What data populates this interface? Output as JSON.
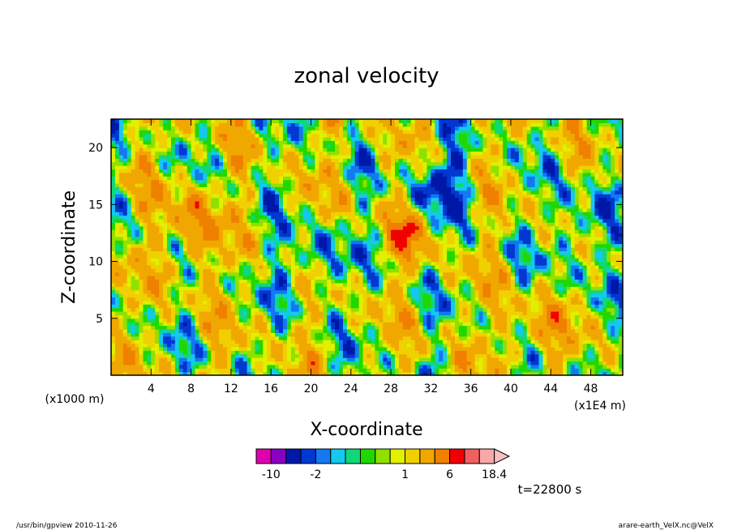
{
  "chart_data": {
    "type": "heatmap",
    "title": "zonal velocity",
    "xlabel": "X-coordinate",
    "ylabel": "Z-coordinate",
    "x_unit_label": "(x1E4 m)",
    "y_unit_label": "(x1000 m)",
    "xlim": [
      0,
      51.2
    ],
    "ylim": [
      0,
      22.5
    ],
    "x_ticks": [
      4,
      8,
      12,
      16,
      20,
      24,
      28,
      32,
      36,
      40,
      44,
      48
    ],
    "y_ticks": [
      5,
      10,
      15,
      20
    ],
    "colorbar": {
      "colors": [
        "#e000b0",
        "#8a00c0",
        "#0018a8",
        "#0038d0",
        "#1478f0",
        "#14c8f0",
        "#10d878",
        "#20d800",
        "#90e000",
        "#e0f000",
        "#f0d000",
        "#f0a800",
        "#f08000",
        "#f00000",
        "#f06060",
        "#f8a8a8",
        "#f8c0c0"
      ],
      "boundaries": [
        -16,
        -10,
        -6,
        -3,
        -2,
        -1.5,
        -1,
        -0.5,
        0,
        0.5,
        1,
        2,
        4,
        6,
        10,
        14,
        18.4
      ],
      "tick_labels": [
        {
          "value": -10,
          "label": "-10"
        },
        {
          "value": -2,
          "label": "-2"
        },
        {
          "value": 1,
          "label": "1"
        },
        {
          "value": 6,
          "label": "6"
        },
        {
          "value": 18.4,
          "label": "18.4"
        }
      ]
    },
    "time_label": "t=22800 s"
  },
  "footer": {
    "left": "/usr/bin/gpview   2010-11-26",
    "right": "arare-earth_VelX.nc@VelX"
  }
}
